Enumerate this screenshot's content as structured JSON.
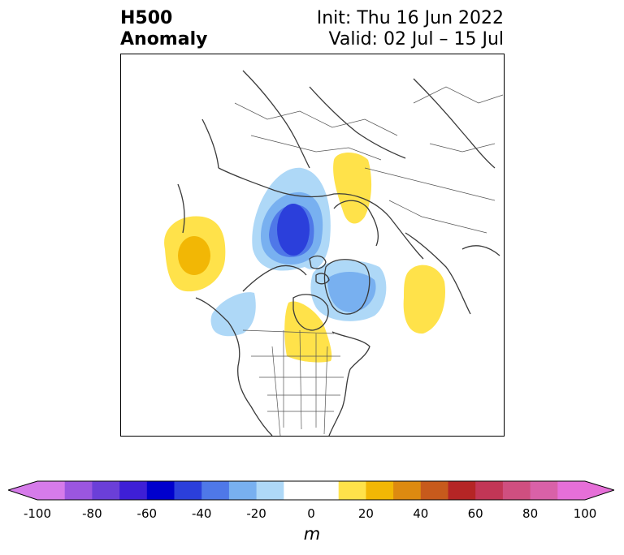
{
  "title": {
    "left_line1": "H500",
    "left_line2": "Anomaly",
    "right_line1": "Init: Thu 16 Jun 2022",
    "right_line2": "Valid: 02 Jul – 15 Jul"
  },
  "colorbar": {
    "unit": "m",
    "min": -100,
    "max": 100,
    "tick_values": [
      -100,
      -80,
      -60,
      -40,
      -20,
      0,
      20,
      40,
      60,
      80,
      100
    ],
    "tick_labels": [
      "-100",
      "-80",
      "-60",
      "-40",
      "-20",
      "0",
      "20",
      "40",
      "60",
      "80",
      "100"
    ],
    "boundaries": [
      -100,
      -90,
      -80,
      -70,
      -60,
      -50,
      -40,
      -30,
      -20,
      -10,
      10,
      20,
      30,
      40,
      50,
      60,
      70,
      80,
      90,
      100
    ],
    "colors": [
      "#d67bea",
      "#9b56e0",
      "#6b3fd8",
      "#3e1fd6",
      "#0000cd",
      "#2b3fdb",
      "#4f78e8",
      "#78b0f0",
      "#aed8f7",
      "#ffffff",
      "#ffe24a",
      "#f2b705",
      "#dd8a10",
      "#c75a1c",
      "#b52525",
      "#c23656",
      "#cf4f80",
      "#d961a8",
      "#e66fd8"
    ],
    "under_color": "#d67bea",
    "over_color": "#e66fd8"
  },
  "anomaly_features": [
    {
      "kind": "positive",
      "level_m": 20,
      "region": "Gulf of Alaska / NE Pacific"
    },
    {
      "kind": "negative",
      "level_m": -50,
      "region": "Siberian Arctic"
    },
    {
      "kind": "negative",
      "level_m": -20,
      "region": "Canadian Archipelago / Greenland"
    },
    {
      "kind": "positive",
      "level_m": 10,
      "region": "Scandinavia / NW Russia"
    },
    {
      "kind": "positive",
      "level_m": 10,
      "region": "North Atlantic"
    },
    {
      "kind": "positive",
      "level_m": 10,
      "region": "Central Canada / Hudson Bay"
    },
    {
      "kind": "negative",
      "level_m": -10,
      "region": "Western Canada"
    }
  ]
}
